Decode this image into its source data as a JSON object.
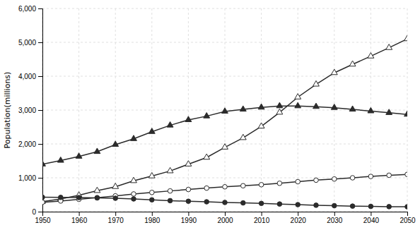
{
  "chart_data": {
    "type": "line",
    "y_label": "Population(millions)",
    "x": [
      1950,
      1955,
      1960,
      1965,
      1970,
      1975,
      1980,
      1985,
      1990,
      1995,
      2000,
      2005,
      2010,
      2015,
      2020,
      2025,
      2030,
      2035,
      2040,
      2045,
      2050
    ],
    "series": [
      {
        "color": "#2b2b2b",
        "marker": "triangle",
        "values": [
          1400,
          1510,
          1630,
          1770,
          1980,
          2150,
          2360,
          2550,
          2710,
          2820,
          2960,
          3020,
          3079,
          3120,
          3119,
          3100,
          3070,
          3020,
          2970,
          2920,
          2870
        ]
      },
      {
        "color": "#2b2b2b",
        "marker": "triangle-open",
        "values": [
          299,
          376,
          483,
          618,
          736,
          910,
          1050,
          1200,
          1400,
          1600,
          1900,
          2180,
          2520,
          2930,
          3380,
          3760,
          4100,
          4350,
          4590,
          4840,
          5100
        ]
      },
      {
        "color": "#2b2b2b",
        "marker": "circle-open",
        "values": [
          278,
          315,
          365,
          414,
          466,
          522,
          568,
          612,
          655,
          696,
          734,
          765,
          796,
          838,
          885,
          930,
          965,
          1000,
          1040,
          1075,
          1100
        ]
      },
      {
        "color": "#2b2b2b",
        "marker": "circle",
        "values": [
          427,
          421,
          415,
          406,
          396,
          376,
          349,
          325,
          308,
          291,
          272,
          258,
          244,
          226,
          207,
          190,
          177,
          164,
          155,
          148,
          144
        ]
      }
    ],
    "xlim": [
      1950,
      2050
    ],
    "ylim": [
      0,
      6000
    ],
    "xticks": [
      1950,
      1960,
      1970,
      1980,
      1990,
      2000,
      2010,
      2020,
      2030,
      2040,
      2050
    ],
    "yticks": [
      0,
      {
        "value": 1000,
        "label": "1,000"
      },
      {
        "value": 2000,
        "label": "2,000"
      },
      {
        "value": 3000,
        "label": "3,000"
      },
      {
        "value": 4000,
        "label": "4,000"
      },
      {
        "value": 5000,
        "label": "5,000"
      },
      {
        "value": 6000,
        "label": "6,000"
      }
    ],
    "grid": true
  }
}
